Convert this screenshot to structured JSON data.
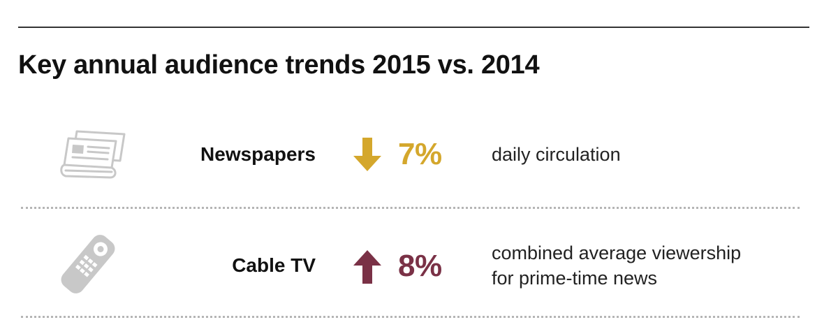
{
  "title": "Key annual audience trends 2015 vs. 2014",
  "colors": {
    "decrease": "#D4A72C",
    "increase": "#7A3146",
    "icon": "#c8c8c8"
  },
  "trends": [
    {
      "medium": "Newspapers",
      "icon": "newspaper-icon",
      "direction": "down",
      "change": "7%",
      "description": [
        "daily circulation"
      ]
    },
    {
      "medium": "Cable TV",
      "icon": "remote-control-icon",
      "direction": "up",
      "change": "8%",
      "description": [
        "combined average viewership",
        "for prime-time news"
      ]
    }
  ]
}
